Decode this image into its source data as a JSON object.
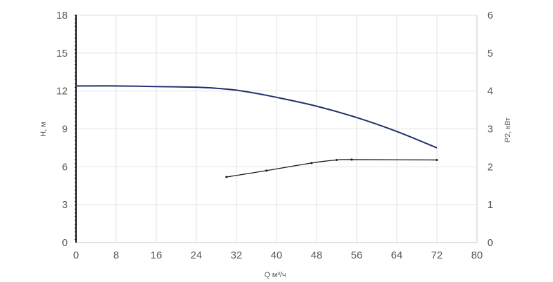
{
  "chart_data": {
    "type": "line",
    "xlabel": "Q м³/ч",
    "ylabel": "H, м",
    "y2label": "P2, кВт",
    "xlim": [
      0,
      80
    ],
    "ylim": [
      0,
      18
    ],
    "y2lim": [
      0,
      6
    ],
    "x_ticks": [
      "0",
      "8",
      "16",
      "24",
      "32",
      "40",
      "48",
      "56",
      "64",
      "72",
      "80"
    ],
    "y_ticks": [
      "0",
      "3",
      "6",
      "9",
      "12",
      "15",
      "18"
    ],
    "y2_ticks": [
      "0",
      "1",
      "2",
      "3",
      "4",
      "5",
      "6"
    ],
    "grid": true,
    "series": [
      {
        "axis": "left",
        "color": "#1f2f6b",
        "points": [
          [
            0,
            12.4
          ],
          [
            8,
            12.4
          ],
          [
            16,
            12.35
          ],
          [
            24,
            12.3
          ],
          [
            30,
            12.15
          ],
          [
            34,
            11.95
          ],
          [
            40,
            11.5
          ],
          [
            48,
            10.8
          ],
          [
            56,
            9.9
          ],
          [
            64,
            8.8
          ],
          [
            72,
            7.5
          ]
        ]
      },
      {
        "axis": "right",
        "color": "#1a1a1a",
        "points": [
          [
            30,
            1.73
          ],
          [
            38,
            1.9
          ],
          [
            47,
            2.1
          ],
          [
            52,
            2.18
          ],
          [
            55,
            2.19
          ],
          [
            72,
            2.18
          ]
        ]
      }
    ]
  }
}
